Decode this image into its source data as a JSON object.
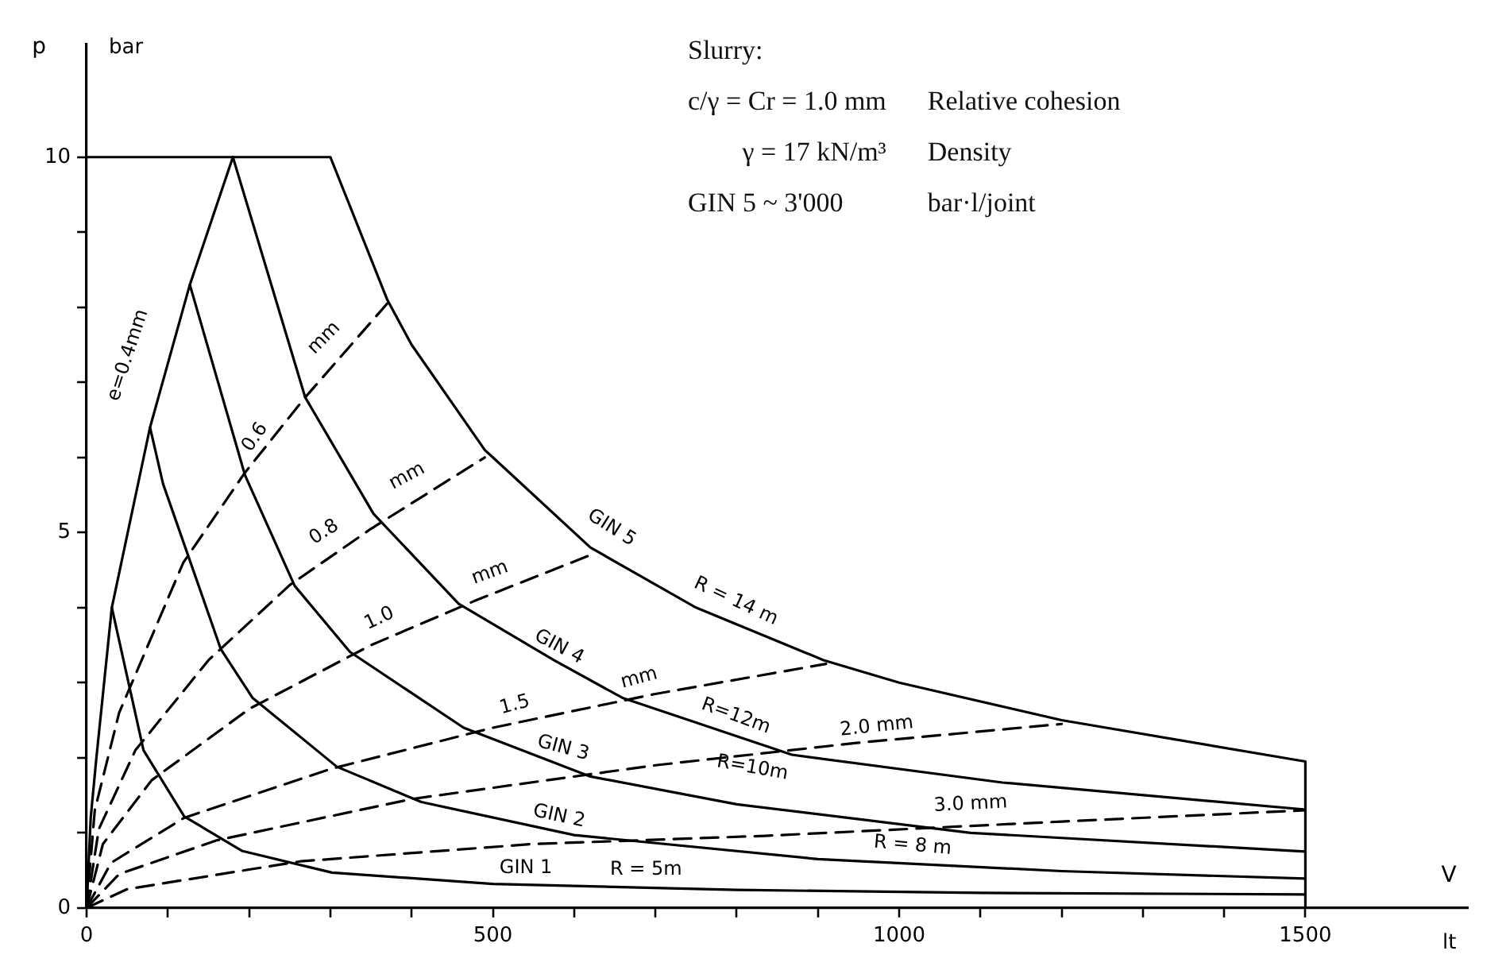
{
  "chart_data": {
    "type": "line",
    "xlabel": "V",
    "ylabel": "p",
    "xlim": [
      0,
      1700
    ],
    "ylim": [
      0,
      11.5
    ],
    "xticks": [
      0,
      {
        "value": 100,
        "label": null
      },
      {
        "value": 200,
        "label": null
      },
      {
        "value": 300,
        "label": null
      },
      {
        "value": 400,
        "label": null
      },
      500,
      {
        "value": 600,
        "label": null
      },
      {
        "value": 700,
        "label": null
      },
      {
        "value": 800,
        "label": null
      },
      {
        "value": 900,
        "label": null
      },
      1000,
      {
        "value": 1100,
        "label": null
      },
      {
        "value": 1200,
        "label": null
      },
      {
        "value": 1300,
        "label": null
      },
      {
        "value": 1400,
        "label": null
      },
      1500
    ],
    "yticks": [
      0,
      {
        "value": 1,
        "label": null
      },
      {
        "value": 2,
        "label": null
      },
      {
        "value": 3,
        "label": null
      },
      {
        "value": 4,
        "label": null
      },
      5,
      {
        "value": 6,
        "label": null
      },
      {
        "value": 7,
        "label": null
      },
      {
        "value": 8,
        "label": null
      },
      {
        "value": 9,
        "label": null
      },
      10
    ],
    "grid": false,
    "legend": false,
    "marker": "none",
    "series": [
      {
        "type": "line",
        "color": "#000000",
        "line_style": "solid",
        "x": [
          0,
          300,
          370,
          400,
          490,
          500,
          620,
          750,
          907,
          1000,
          1200,
          1500,
          1500
        ],
        "values": [
          10,
          10,
          8.1,
          7.5,
          6.1,
          6,
          4.8,
          4,
          3.3,
          3,
          2.5,
          1.95,
          0
        ]
      },
      {
        "type": "line",
        "color": "#000000",
        "line_style": "solid",
        "x": [
          0,
          5,
          12,
          31,
          78,
          127,
          180
        ],
        "values": [
          0,
          1.2,
          2,
          4,
          6.4,
          8.3,
          10
        ]
      },
      {
        "type": "line",
        "color": "#000000",
        "line_style": "solid",
        "x": [
          180,
          269,
          353,
          458,
          575,
          659,
          868,
          1127,
          1500
        ],
        "values": [
          10,
          6.8,
          5.25,
          4.05,
          3.3,
          2.8,
          2.04,
          1.67,
          1.31
        ]
      },
      {
        "type": "line",
        "color": "#000000",
        "line_style": "solid",
        "x": [
          127,
          195,
          256,
          324,
          464,
          620,
          800,
          1088,
          1500
        ],
        "values": [
          8.3,
          5.76,
          4.29,
          3.41,
          2.4,
          1.75,
          1.38,
          1,
          0.75
        ]
      },
      {
        "type": "line",
        "color": "#000000",
        "line_style": "solid",
        "x": [
          78,
          94,
          165,
          204,
          308,
          412,
          600,
          900,
          1200,
          1500
        ],
        "values": [
          6.4,
          5.65,
          3.45,
          2.8,
          1.88,
          1.41,
          0.97,
          0.65,
          0.49,
          0.39
        ]
      },
      {
        "type": "line",
        "color": "#000000",
        "line_style": "solid",
        "x": [
          31,
          70,
          120,
          191,
          302,
          500,
          800,
          1100,
          1500
        ],
        "values": [
          4,
          2.1,
          1.22,
          0.76,
          0.47,
          0.32,
          0.24,
          0.2,
          0.18
        ]
      },
      {
        "type": "line",
        "color": "#000000",
        "line_style": "dashed",
        "x": [
          0,
          10,
          40,
          119,
          195,
          269,
          370
        ],
        "values": [
          0,
          1.3,
          2.6,
          4.6,
          5.8,
          6.8,
          8.05
        ]
      },
      {
        "type": "line",
        "color": "#000000",
        "line_style": "dashed",
        "x": [
          0,
          15,
          60,
          150,
          250,
          350,
          490
        ],
        "values": [
          0,
          1.05,
          2.1,
          3.3,
          4.3,
          5.05,
          6
        ]
      },
      {
        "type": "line",
        "color": "#000000",
        "line_style": "dashed",
        "x": [
          0,
          20,
          80,
          200,
          350,
          480,
          620
        ],
        "values": [
          0,
          0.85,
          1.7,
          2.65,
          3.5,
          4.1,
          4.7
        ]
      },
      {
        "type": "line",
        "color": "#000000",
        "line_style": "dashed",
        "x": [
          0,
          30,
          120,
          300,
          500,
          700,
          910
        ],
        "values": [
          0,
          0.6,
          1.2,
          1.85,
          2.4,
          2.85,
          3.25
        ]
      },
      {
        "type": "line",
        "color": "#000000",
        "line_style": "dashed",
        "x": [
          0,
          40,
          160,
          400,
          700,
          950,
          1200
        ],
        "values": [
          0,
          0.45,
          0.9,
          1.45,
          1.9,
          2.2,
          2.45
        ]
      },
      {
        "type": "line",
        "color": "#000000",
        "line_style": "dashed",
        "x": [
          0,
          50,
          263,
          548,
          835,
          1200,
          1500
        ],
        "values": [
          0,
          0.25,
          0.62,
          0.85,
          0.96,
          1.15,
          1.3
        ]
      }
    ],
    "annotations": [
      "Slurry:",
      "c/γ = Cr = 1.0 mm",
      "Relative cohesion",
      "γ = 17 kN/m³",
      "Density",
      "GIN 5 ~ 3'000",
      "bar·l/joint",
      "bar",
      "lt",
      "e=0.4mm",
      "0.6",
      "mm",
      "0.8",
      "mm",
      "1.0",
      "mm",
      "1.5",
      "mm",
      "2.0 mm",
      "3.0 mm",
      "GIN 5",
      "R = 14 m",
      "GIN 4",
      "R=12m",
      "GIN 3",
      "R=10m",
      "GIN 2",
      "R = 8 m",
      "GIN 1",
      "R = 5m"
    ]
  }
}
